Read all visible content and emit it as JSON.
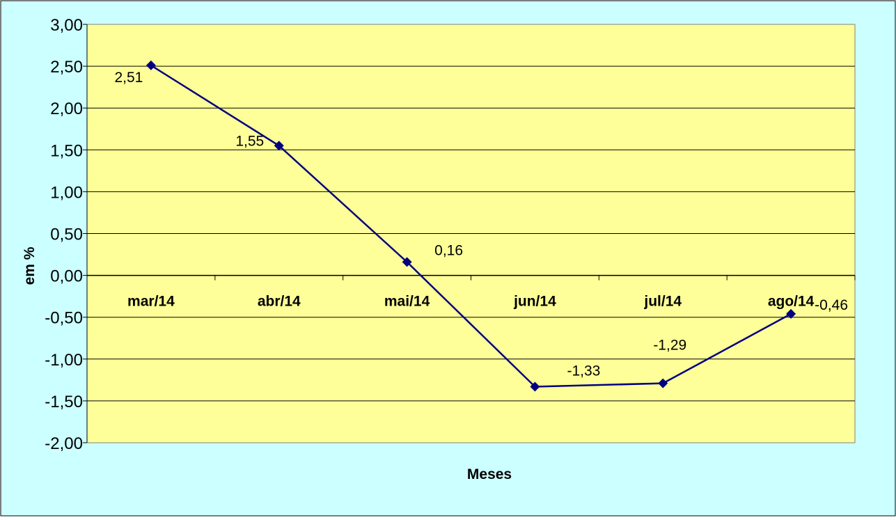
{
  "colors": {
    "background": "#CCFFFF",
    "plot_area": "#FFFF99",
    "series": "#000080",
    "gridline": "#000000"
  },
  "chart_data": {
    "type": "line",
    "categories": [
      "mar/14",
      "abr/14",
      "mai/14",
      "jun/14",
      "jul/14",
      "ago/14"
    ],
    "series": [
      {
        "values": [
          2.51,
          1.55,
          0.16,
          -1.33,
          -1.29,
          -0.46
        ]
      }
    ],
    "data_labels": [
      "2,51",
      "1,55",
      "0,16",
      "-1,33",
      "-1,29",
      "-0,46"
    ],
    "xlabel": "Meses",
    "ylabel": "em %",
    "ylim": [
      -2.0,
      3.0
    ],
    "ytick_values": [
      3.0,
      2.5,
      2.0,
      1.5,
      1.0,
      0.5,
      0.0,
      -0.5,
      -1.0,
      -1.5,
      -2.0
    ],
    "ytick_labels": [
      "3,00",
      "2,50",
      "2,00",
      "1,50",
      "1,00",
      "0,50",
      "0,00",
      "-0,50",
      "-1,00",
      "-1,50",
      "-2,00"
    ],
    "grid": true,
    "legend": "none",
    "marker": "diamond"
  }
}
